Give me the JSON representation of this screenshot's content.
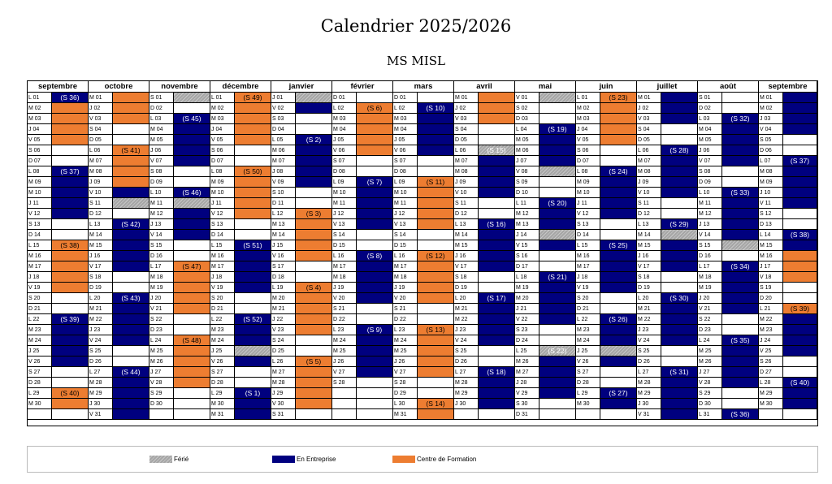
{
  "header": {
    "title": "Calendrier 2025/2026",
    "subtitle": "MS MISL"
  },
  "colors": {
    "ferie": "#a6a6a6",
    "entreprise": "#00007f",
    "formation": "#ed7d31",
    "white": "#ffffff"
  },
  "legend": [
    {
      "key": "G",
      "label": "Férié"
    },
    {
      "key": "E",
      "label": "En Entreprise"
    },
    {
      "key": "F",
      "label": "Centre de Formation"
    }
  ],
  "months": [
    {
      "name": "septembre",
      "days": 30,
      "start": 0,
      "status": "EFFFFFFEEEEEEEFFFFFFEEEEEEEFFF",
      "weeks": [
        "(S 36)",
        "(S 37)",
        "(S 38)",
        "(S 39)",
        "(S 40)"
      ]
    },
    {
      "name": "octobre",
      "days": 31,
      "start": 2,
      "status": "FFFFFFFFFEEEEEEEEEEEEEEEEEEEEEE",
      "weeks": [
        "(S 41)",
        "(S 42)",
        "(S 43)",
        "(S 44)"
      ]
    },
    {
      "name": "novembre",
      "days": 30,
      "start": 5,
      "status": "EEEEEEEEEEEEEEEFFFFFFFFFFFFFFE",
      "weeks": [
        "(S 45)",
        "(S 46)",
        "(S 47)",
        "(S 48)"
      ]
    },
    {
      "name": "décembre",
      "days": 31,
      "start": 0,
      "status": "FFFFFFFFFFFFFEEEEEEEEEEEEEEEEEE",
      "weeks": [
        "(S 49)",
        "(S 50)",
        "(S 51)",
        "(S 52)",
        "(S 1)"
      ]
    },
    {
      "name": "janvier",
      "days": 31,
      "start": 3,
      "status": "EEEEEEEEEEEFFFFFFFFFFFFFFFFFFFF",
      "weeks": [
        "(S 2)",
        "(S 3)",
        "(S 4)",
        "(S 5)"
      ]
    },
    {
      "name": "février",
      "days": 28,
      "start": 6,
      "status": "FFFFFFFFEEEEEEEEEEEEEEEEEEEE",
      "weeks": [
        "(S 6)",
        "(S 7)",
        "(S 8)",
        "(S 9)"
      ]
    },
    {
      "name": "mars",
      "days": 31,
      "start": 6,
      "status": "EEEEEEEFFFFFFFFFFFFFFFFFFFFFFFF",
      "weeks": [
        "(S 10)",
        "(S 11)",
        "(S 12)",
        "(S 13)",
        "(S 14)"
      ]
    },
    {
      "name": "avril",
      "days": 30,
      "start": 2,
      "status": "FFFFEEEEEEEEEEEEEEEEEEEEEEEEEE",
      "weeks": [
        "(S 15)",
        "(S 16)",
        "(S 17)",
        "(S 18)"
      ]
    },
    {
      "name": "mai",
      "days": 31,
      "start": 4,
      "status": "EEEEEEEEEEEEEEEEEEEEEEEEEEEEEEE",
      "weeks": [
        "(S 19)",
        "(S 20)",
        "(S 21)",
        "(S 22)"
      ]
    },
    {
      "name": "juin",
      "days": 30,
      "start": 0,
      "status": "FFFFFFFEEEEEEEEEEEEEEEEEEEEEEE",
      "weeks": [
        "(S 23)",
        "(S 24)",
        "(S 25)",
        "(S 26)",
        "(S 27)"
      ]
    },
    {
      "name": "juillet",
      "days": 31,
      "start": 2,
      "status": "EEEEEEEEEEEEEEEEEEEEEEEEEEEEEEE",
      "weeks": [
        "(S 28)",
        "(S 29)",
        "(S 30)",
        "(S 31)"
      ]
    },
    {
      "name": "août",
      "days": 31,
      "start": 5,
      "status": "EEEEEEEEEEEEEEEEEEEEEEEEEEEEEEE",
      "weeks": [
        "(S 32)",
        "(S 33)",
        "(S 34)",
        "(S 35)",
        "(S 36)"
      ]
    },
    {
      "name": "septembre",
      "days": 30,
      "start": 1,
      "status": "EEEEEEEEEEEEEEEFFFFFFEEEEEEEEE",
      "weeks": [
        "(S 37)",
        "(S 38)",
        "(S 39)",
        "(S 40)"
      ]
    }
  ],
  "day_letters": [
    "L",
    "M",
    "M",
    "J",
    "V",
    "S",
    "D"
  ],
  "holidays": [
    {
      "m": 1,
      "d": 11
    },
    {
      "m": 2,
      "d": 1
    },
    {
      "m": 2,
      "d": 11
    },
    {
      "m": 3,
      "d": 25
    },
    {
      "m": 4,
      "d": 1
    },
    {
      "m": 7,
      "d": 6
    },
    {
      "m": 8,
      "d": 1
    },
    {
      "m": 8,
      "d": 8
    },
    {
      "m": 8,
      "d": 14
    },
    {
      "m": 8,
      "d": 25
    },
    {
      "m": 9,
      "d": 25
    },
    {
      "m": 10,
      "d": 14
    },
    {
      "m": 11,
      "d": 15
    }
  ]
}
